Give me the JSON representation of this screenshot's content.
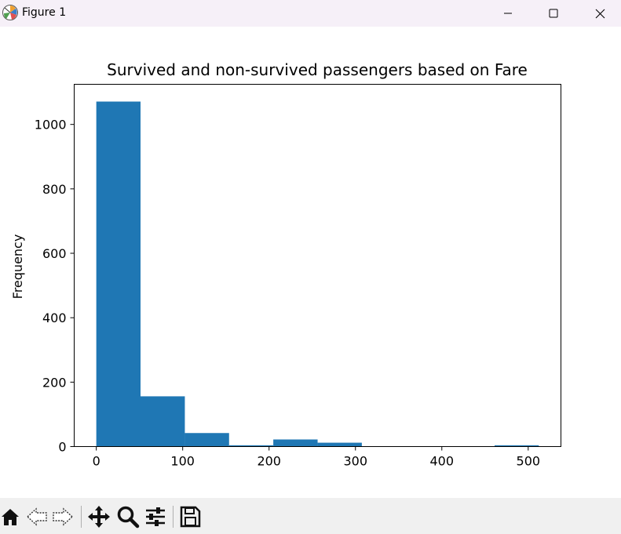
{
  "window": {
    "title": "Figure 1",
    "controls": [
      "minimize-icon",
      "maximize-icon",
      "close-icon"
    ]
  },
  "toolbar": {
    "tools": [
      {
        "name": "home-icon"
      },
      {
        "name": "back-arrow-icon"
      },
      {
        "name": "forward-arrow-icon"
      },
      {
        "name": "pan-icon"
      },
      {
        "name": "zoom-icon"
      },
      {
        "name": "subplots-config-icon"
      },
      {
        "name": "save-icon"
      }
    ]
  },
  "chart_data": {
    "type": "bar",
    "title": "Survived and non-survived passengers based on Fare",
    "xlabel": "",
    "ylabel": "Frequency",
    "bin_edges": [
      0,
      51.2,
      102.5,
      153.7,
      204.9,
      256.2,
      307.4,
      358.6,
      409.8,
      461.1,
      512.3
    ],
    "values": [
      1071,
      156,
      42,
      4,
      22,
      12,
      0,
      0,
      0,
      4
    ],
    "xlim": [
      -25.6,
      537.9
    ],
    "ylim": [
      0,
      1124.6
    ],
    "xticks": [
      0,
      100,
      200,
      300,
      400,
      500
    ],
    "xtick_labels": [
      "0",
      "100",
      "200",
      "300",
      "400",
      "500"
    ],
    "yticks": [
      0,
      200,
      400,
      600,
      800,
      1000
    ],
    "ytick_labels": [
      "0",
      "200",
      "400",
      "600",
      "800",
      "1000"
    ],
    "bar_color": "#1f77b4",
    "grid": false,
    "legend": "none"
  }
}
